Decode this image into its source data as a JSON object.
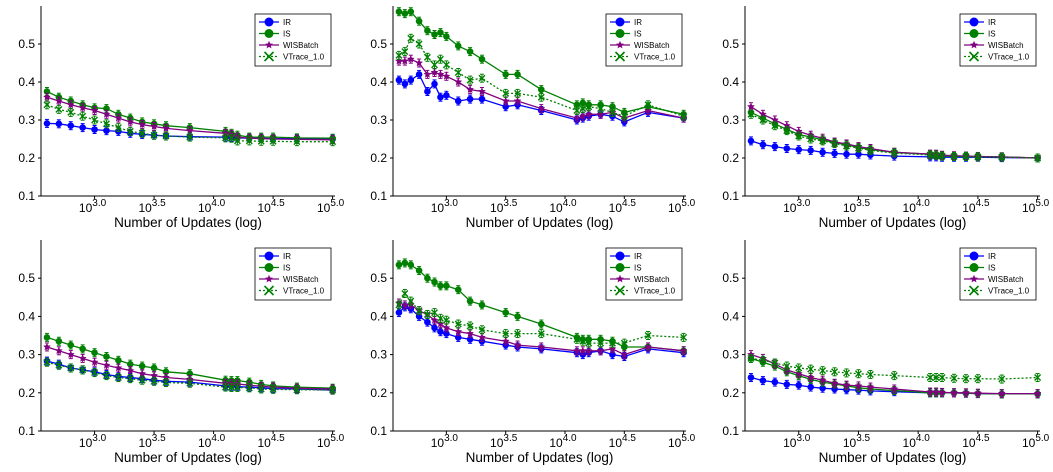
{
  "colors": {
    "IR": "#0000ff",
    "IS": "#008000",
    "WISBatch": "#800080",
    "VTrace_1.0": "#008000"
  },
  "chart_data": [
    {
      "type": "line",
      "xscale": "log10",
      "xlim": [
        2.55,
        5.02
      ],
      "ylim": [
        0.1,
        0.6
      ],
      "xlabel": "Number of Updates (log)",
      "xticks": [
        {
          "base": "10",
          "exp": "3.0",
          "pos": 3.0
        },
        {
          "base": "10",
          "exp": "3.5",
          "pos": 3.5
        },
        {
          "base": "10",
          "exp": "4.0",
          "pos": 4.0
        },
        {
          "base": "10",
          "exp": "4.5",
          "pos": 4.5
        },
        {
          "base": "10",
          "exp": "5.0",
          "pos": 5.0
        }
      ],
      "yticks": [
        "0.1",
        "0.2",
        "0.3",
        "0.4",
        "0.5"
      ],
      "legend": "top-right",
      "x_log10": [
        2.6,
        2.7,
        2.8,
        2.9,
        3.0,
        3.1,
        3.2,
        3.3,
        3.4,
        3.5,
        3.6,
        3.8,
        4.1,
        4.15,
        4.2,
        4.3,
        4.4,
        4.5,
        4.7,
        5.0
      ],
      "series": [
        {
          "name": "IR",
          "values": [
            0.291,
            0.29,
            0.285,
            0.28,
            0.275,
            0.272,
            0.27,
            0.265,
            0.262,
            0.26,
            0.258,
            0.256,
            0.255,
            0.254,
            0.253,
            0.252,
            0.252,
            0.251,
            0.251,
            0.25
          ]
        },
        {
          "name": "IS",
          "values": [
            0.375,
            0.36,
            0.35,
            0.34,
            0.332,
            0.33,
            0.315,
            0.305,
            0.295,
            0.29,
            0.285,
            0.28,
            0.27,
            0.265,
            0.26,
            0.255,
            0.255,
            0.255,
            0.253,
            0.252
          ]
        },
        {
          "name": "WISBatch",
          "values": [
            0.36,
            0.35,
            0.34,
            0.332,
            0.325,
            0.315,
            0.305,
            0.295,
            0.288,
            0.283,
            0.278,
            0.272,
            0.265,
            0.262,
            0.255,
            0.252,
            0.251,
            0.25,
            0.249,
            0.248
          ]
        },
        {
          "name": "VTrace_1.0",
          "values": [
            0.34,
            0.328,
            0.32,
            0.31,
            0.3,
            0.29,
            0.28,
            0.27,
            0.265,
            0.26,
            0.258,
            0.255,
            0.253,
            0.252,
            0.245,
            0.245,
            0.244,
            0.244,
            0.243,
            0.243
          ]
        }
      ]
    },
    {
      "type": "line",
      "xscale": "log10",
      "xlim": [
        2.55,
        5.02
      ],
      "ylim": [
        0.1,
        0.6
      ],
      "xlabel": "Number of Updates (log)",
      "xticks": [
        {
          "base": "10",
          "exp": "3.0",
          "pos": 3.0
        },
        {
          "base": "10",
          "exp": "3.5",
          "pos": 3.5
        },
        {
          "base": "10",
          "exp": "4.0",
          "pos": 4.0
        },
        {
          "base": "10",
          "exp": "4.5",
          "pos": 4.5
        },
        {
          "base": "10",
          "exp": "5.0",
          "pos": 5.0
        }
      ],
      "yticks": [
        "0.1",
        "0.2",
        "0.3",
        "0.4",
        "0.5"
      ],
      "legend": "top-right",
      "x_log10": [
        2.6,
        2.65,
        2.7,
        2.77,
        2.84,
        2.9,
        2.95,
        3.0,
        3.1,
        3.2,
        3.3,
        3.5,
        3.6,
        3.8,
        4.1,
        4.15,
        4.2,
        4.3,
        4.4,
        4.5,
        4.7,
        5.0
      ],
      "series": [
        {
          "name": "IR",
          "values": [
            0.405,
            0.395,
            0.405,
            0.42,
            0.375,
            0.395,
            0.36,
            0.365,
            0.35,
            0.355,
            0.355,
            0.335,
            0.34,
            0.325,
            0.3,
            0.305,
            0.31,
            0.315,
            0.31,
            0.295,
            0.32,
            0.305
          ]
        },
        {
          "name": "IS",
          "values": [
            0.585,
            0.58,
            0.585,
            0.56,
            0.535,
            0.525,
            0.53,
            0.52,
            0.495,
            0.48,
            0.46,
            0.42,
            0.42,
            0.38,
            0.34,
            0.345,
            0.34,
            0.34,
            0.335,
            0.32,
            0.335,
            0.315
          ]
        },
        {
          "name": "WISBatch",
          "values": [
            0.455,
            0.455,
            0.46,
            0.45,
            0.42,
            0.425,
            0.42,
            0.415,
            0.4,
            0.38,
            0.375,
            0.35,
            0.35,
            0.33,
            0.305,
            0.31,
            0.315,
            0.315,
            0.32,
            0.305,
            0.325,
            0.305
          ]
        },
        {
          "name": "VTrace_1.0",
          "values": [
            0.47,
            0.48,
            0.515,
            0.5,
            0.465,
            0.445,
            0.46,
            0.445,
            0.425,
            0.405,
            0.41,
            0.37,
            0.37,
            0.36,
            0.325,
            0.33,
            0.335,
            0.33,
            0.32,
            0.31,
            0.34,
            0.31
          ]
        }
      ]
    },
    {
      "type": "line",
      "xscale": "log10",
      "xlim": [
        2.55,
        5.02
      ],
      "ylim": [
        0.1,
        0.6
      ],
      "xlabel": "Number of Updates (log)",
      "xticks": [
        {
          "base": "10",
          "exp": "3.0",
          "pos": 3.0
        },
        {
          "base": "10",
          "exp": "3.5",
          "pos": 3.5
        },
        {
          "base": "10",
          "exp": "4.0",
          "pos": 4.0
        },
        {
          "base": "10",
          "exp": "4.5",
          "pos": 4.5
        },
        {
          "base": "10",
          "exp": "5.0",
          "pos": 5.0
        }
      ],
      "yticks": [
        "0.1",
        "0.2",
        "0.3",
        "0.4",
        "0.5"
      ],
      "legend": "top-right",
      "x_log10": [
        2.6,
        2.7,
        2.8,
        2.9,
        3.0,
        3.1,
        3.2,
        3.3,
        3.4,
        3.5,
        3.6,
        3.8,
        4.1,
        4.15,
        4.2,
        4.3,
        4.4,
        4.5,
        4.7,
        5.0
      ],
      "series": [
        {
          "name": "IR",
          "values": [
            0.245,
            0.235,
            0.23,
            0.225,
            0.222,
            0.22,
            0.215,
            0.212,
            0.21,
            0.21,
            0.208,
            0.205,
            0.203,
            0.203,
            0.202,
            0.202,
            0.202,
            0.202,
            0.201,
            0.2
          ]
        },
        {
          "name": "IS",
          "values": [
            0.32,
            0.305,
            0.29,
            0.275,
            0.262,
            0.255,
            0.248,
            0.24,
            0.235,
            0.228,
            0.222,
            0.215,
            0.21,
            0.208,
            0.207,
            0.205,
            0.205,
            0.204,
            0.203,
            0.2
          ]
        },
        {
          "name": "WISBatch",
          "values": [
            0.335,
            0.315,
            0.3,
            0.285,
            0.27,
            0.26,
            0.252,
            0.242,
            0.237,
            0.23,
            0.225,
            0.215,
            0.21,
            0.21,
            0.207,
            0.206,
            0.205,
            0.204,
            0.203,
            0.2
          ]
        },
        {
          "name": "VTrace_1.0",
          "values": [
            0.315,
            0.3,
            0.285,
            0.272,
            0.258,
            0.25,
            0.245,
            0.238,
            0.232,
            0.226,
            0.22,
            0.213,
            0.208,
            0.207,
            0.205,
            0.204,
            0.204,
            0.203,
            0.202,
            0.2
          ]
        }
      ]
    },
    {
      "type": "line",
      "xscale": "log10",
      "xlim": [
        2.55,
        5.02
      ],
      "ylim": [
        0.1,
        0.6
      ],
      "xlabel": "Number of Updates (log)",
      "xticks": [
        {
          "base": "10",
          "exp": "3.0",
          "pos": 3.0
        },
        {
          "base": "10",
          "exp": "3.5",
          "pos": 3.5
        },
        {
          "base": "10",
          "exp": "4.0",
          "pos": 4.0
        },
        {
          "base": "10",
          "exp": "4.5",
          "pos": 4.5
        },
        {
          "base": "10",
          "exp": "5.0",
          "pos": 5.0
        }
      ],
      "yticks": [
        "0.1",
        "0.2",
        "0.3",
        "0.4",
        "0.5"
      ],
      "legend": "top-right",
      "x_log10": [
        2.6,
        2.7,
        2.8,
        2.9,
        3.0,
        3.1,
        3.2,
        3.3,
        3.4,
        3.5,
        3.6,
        3.8,
        4.1,
        4.15,
        4.2,
        4.3,
        4.4,
        4.5,
        4.7,
        5.0
      ],
      "series": [
        {
          "name": "IR",
          "values": [
            0.283,
            0.275,
            0.265,
            0.26,
            0.255,
            0.248,
            0.243,
            0.24,
            0.237,
            0.233,
            0.23,
            0.228,
            0.218,
            0.217,
            0.216,
            0.215,
            0.213,
            0.211,
            0.21,
            0.207
          ]
        },
        {
          "name": "IS",
          "values": [
            0.345,
            0.335,
            0.325,
            0.315,
            0.305,
            0.295,
            0.285,
            0.275,
            0.27,
            0.265,
            0.255,
            0.25,
            0.233,
            0.232,
            0.232,
            0.228,
            0.222,
            0.218,
            0.215,
            0.212
          ]
        },
        {
          "name": "WISBatch",
          "values": [
            0.32,
            0.31,
            0.3,
            0.29,
            0.28,
            0.272,
            0.265,
            0.258,
            0.25,
            0.245,
            0.24,
            0.235,
            0.225,
            0.224,
            0.223,
            0.22,
            0.217,
            0.215,
            0.212,
            0.21
          ]
        },
        {
          "name": "VTrace_1.0",
          "values": [
            0.28,
            0.272,
            0.265,
            0.26,
            0.253,
            0.245,
            0.24,
            0.237,
            0.233,
            0.23,
            0.227,
            0.225,
            0.215,
            0.214,
            0.214,
            0.213,
            0.21,
            0.209,
            0.208,
            0.207
          ]
        }
      ]
    },
    {
      "type": "line",
      "xscale": "log10",
      "xlim": [
        2.55,
        5.02
      ],
      "ylim": [
        0.1,
        0.6
      ],
      "xlabel": "Number of Updates (log)",
      "xticks": [
        {
          "base": "10",
          "exp": "3.0",
          "pos": 3.0
        },
        {
          "base": "10",
          "exp": "3.5",
          "pos": 3.5
        },
        {
          "base": "10",
          "exp": "4.0",
          "pos": 4.0
        },
        {
          "base": "10",
          "exp": "4.5",
          "pos": 4.5
        },
        {
          "base": "10",
          "exp": "5.0",
          "pos": 5.0
        }
      ],
      "yticks": [
        "0.1",
        "0.2",
        "0.3",
        "0.4",
        "0.5"
      ],
      "legend": "top-right",
      "x_log10": [
        2.6,
        2.65,
        2.7,
        2.77,
        2.84,
        2.9,
        2.95,
        3.0,
        3.1,
        3.2,
        3.3,
        3.5,
        3.6,
        3.8,
        4.1,
        4.15,
        4.2,
        4.3,
        4.4,
        4.5,
        4.7,
        5.0
      ],
      "series": [
        {
          "name": "IR",
          "values": [
            0.41,
            0.425,
            0.42,
            0.4,
            0.385,
            0.37,
            0.36,
            0.355,
            0.345,
            0.34,
            0.335,
            0.325,
            0.32,
            0.315,
            0.305,
            0.3,
            0.305,
            0.31,
            0.3,
            0.295,
            0.315,
            0.305
          ]
        },
        {
          "name": "IS",
          "values": [
            0.535,
            0.54,
            0.535,
            0.52,
            0.5,
            0.49,
            0.48,
            0.48,
            0.47,
            0.44,
            0.43,
            0.41,
            0.4,
            0.38,
            0.345,
            0.34,
            0.34,
            0.34,
            0.335,
            0.32,
            0.32,
            0.31
          ]
        },
        {
          "name": "WISBatch",
          "values": [
            0.435,
            0.43,
            0.43,
            0.415,
            0.405,
            0.39,
            0.38,
            0.37,
            0.36,
            0.355,
            0.345,
            0.335,
            0.325,
            0.32,
            0.31,
            0.31,
            0.31,
            0.31,
            0.315,
            0.3,
            0.32,
            0.31
          ]
        },
        {
          "name": "VTrace_1.0",
          "values": [
            0.43,
            0.46,
            0.44,
            0.415,
            0.405,
            0.41,
            0.395,
            0.39,
            0.38,
            0.375,
            0.365,
            0.355,
            0.355,
            0.355,
            0.34,
            0.335,
            0.33,
            0.33,
            0.33,
            0.33,
            0.35,
            0.345
          ]
        }
      ]
    },
    {
      "type": "line",
      "xscale": "log10",
      "xlim": [
        2.55,
        5.02
      ],
      "ylim": [
        0.1,
        0.6
      ],
      "xlabel": "Number of Updates (log)",
      "xticks": [
        {
          "base": "10",
          "exp": "3.0",
          "pos": 3.0
        },
        {
          "base": "10",
          "exp": "3.5",
          "pos": 3.5
        },
        {
          "base": "10",
          "exp": "4.0",
          "pos": 4.0
        },
        {
          "base": "10",
          "exp": "4.5",
          "pos": 4.5
        },
        {
          "base": "10",
          "exp": "5.0",
          "pos": 5.0
        }
      ],
      "yticks": [
        "0.1",
        "0.2",
        "0.3",
        "0.4",
        "0.5"
      ],
      "legend": "top-right",
      "x_log10": [
        2.6,
        2.7,
        2.8,
        2.9,
        3.0,
        3.1,
        3.2,
        3.3,
        3.4,
        3.5,
        3.6,
        3.8,
        4.1,
        4.15,
        4.2,
        4.3,
        4.4,
        4.5,
        4.7,
        5.0
      ],
      "series": [
        {
          "name": "IR",
          "values": [
            0.24,
            0.232,
            0.228,
            0.222,
            0.22,
            0.215,
            0.212,
            0.21,
            0.208,
            0.207,
            0.205,
            0.203,
            0.2,
            0.2,
            0.2,
            0.2,
            0.199,
            0.198,
            0.197,
            0.197
          ]
        },
        {
          "name": "IS",
          "values": [
            0.29,
            0.28,
            0.27,
            0.255,
            0.245,
            0.235,
            0.228,
            0.223,
            0.218,
            0.213,
            0.21,
            0.206,
            0.2,
            0.2,
            0.2,
            0.2,
            0.199,
            0.198,
            0.197,
            0.197
          ]
        },
        {
          "name": "WISBatch",
          "values": [
            0.3,
            0.29,
            0.275,
            0.26,
            0.25,
            0.24,
            0.233,
            0.225,
            0.22,
            0.218,
            0.215,
            0.21,
            0.202,
            0.202,
            0.201,
            0.2,
            0.2,
            0.199,
            0.198,
            0.198
          ]
        },
        {
          "name": "VTrace_1.0",
          "values": [
            0.29,
            0.285,
            0.278,
            0.27,
            0.265,
            0.262,
            0.258,
            0.255,
            0.252,
            0.25,
            0.248,
            0.245,
            0.24,
            0.24,
            0.24,
            0.238,
            0.237,
            0.237,
            0.236,
            0.24
          ]
        }
      ]
    }
  ]
}
